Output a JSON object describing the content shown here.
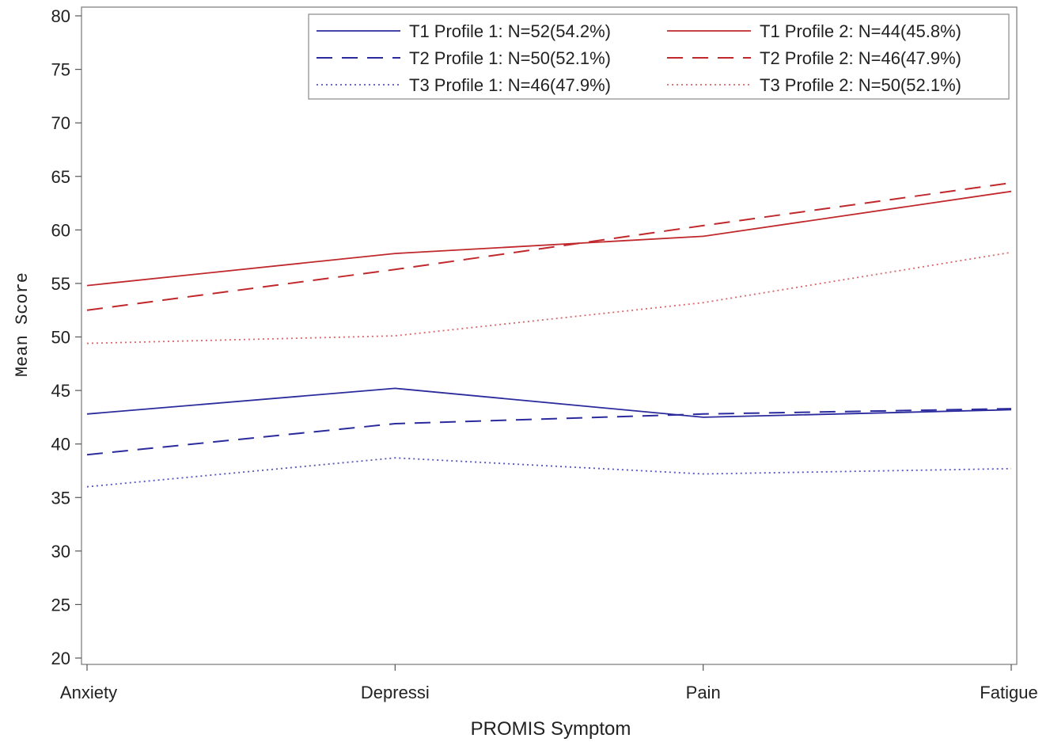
{
  "chart_data": {
    "type": "line",
    "title": "",
    "xlabel": "PROMIS Symptom",
    "ylabel": "Mean Score",
    "categories": [
      "Anxiety",
      "Depressi",
      "Pain",
      "Fatigue"
    ],
    "ylim": [
      20,
      80
    ],
    "yticks": [
      20,
      25,
      30,
      35,
      40,
      45,
      50,
      55,
      60,
      65,
      70,
      75,
      80
    ],
    "grid": false,
    "legend_position": "top-right",
    "series": [
      {
        "name": "T1 Profile 1: N=52(54.2%)",
        "values": [
          42.8,
          45.2,
          42.5,
          43.2
        ],
        "color": "#2b2b9e",
        "dash": "solid"
      },
      {
        "name": "T1 Profile 2: N=44(45.8%)",
        "values": [
          54.8,
          57.8,
          59.4,
          63.6
        ],
        "color": "#c0282c",
        "dash": "solid"
      },
      {
        "name": "T2 Profile 1: N=50(52.1%)",
        "values": [
          39.0,
          41.9,
          42.8,
          43.3
        ],
        "color": "#2b2b9e",
        "dash": "dashed"
      },
      {
        "name": "T2 Profile 2: N=46(47.9%)",
        "values": [
          52.5,
          56.3,
          60.4,
          64.4
        ],
        "color": "#c0282c",
        "dash": "dashed"
      },
      {
        "name": "T3 Profile 1: N=46(47.9%)",
        "values": [
          36.0,
          38.7,
          37.2,
          37.7
        ],
        "color": "#5555bb",
        "dash": "dotted"
      },
      {
        "name": "T3 Profile 2: N=50(52.1%)",
        "values": [
          49.4,
          50.1,
          53.2,
          57.9
        ],
        "color": "#d9666a",
        "dash": "dotted"
      }
    ]
  }
}
